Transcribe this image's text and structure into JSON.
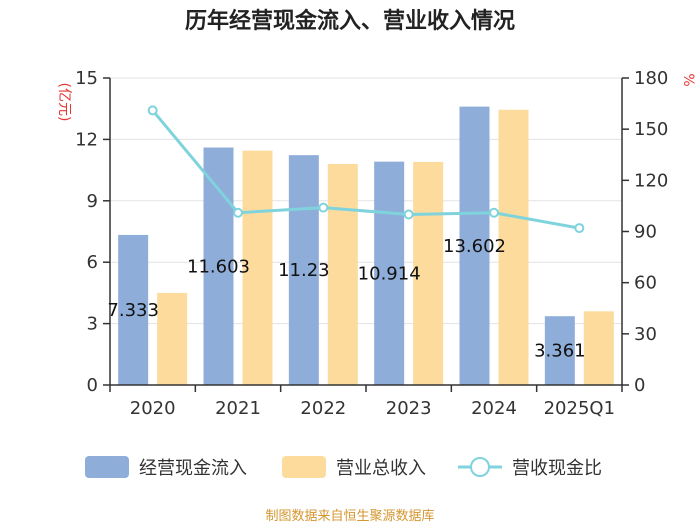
{
  "chart_data": {
    "type": "bar",
    "title": "历年经营现金流入、营业收入情况",
    "categories": [
      "2020",
      "2021",
      "2022",
      "2023",
      "2024",
      "2025Q1"
    ],
    "y_left": {
      "unit": "(亿元)",
      "ylim": [
        0,
        15
      ],
      "ticks": [
        "0",
        "3",
        "6",
        "9",
        "12",
        "15"
      ]
    },
    "y_right": {
      "unit": "%",
      "ylim": [
        0,
        180
      ],
      "ticks": [
        "0",
        "30",
        "60",
        "90",
        "120",
        "150",
        "180"
      ]
    },
    "series": [
      {
        "name": "经营现金流入",
        "type": "bar",
        "axis": "left",
        "color": "#8fadd9",
        "values": [
          7.333,
          11.603,
          11.23,
          10.914,
          13.602,
          3.361
        ],
        "labels": [
          "7.333",
          "11.603",
          "11.23",
          "10.914",
          "13.602",
          "3.361"
        ]
      },
      {
        "name": "营业总收入",
        "type": "bar",
        "axis": "left",
        "color": "#fddb9c",
        "values": [
          4.5,
          11.45,
          10.8,
          10.9,
          13.45,
          3.6
        ]
      },
      {
        "name": "营收现金比",
        "type": "line",
        "axis": "right",
        "color": "#7fd3dc",
        "values": [
          161,
          101,
          104,
          100,
          101,
          92
        ]
      }
    ],
    "grid": true,
    "legend_position": "bottom",
    "source": "制图数据来自恒生聚源数据库"
  }
}
